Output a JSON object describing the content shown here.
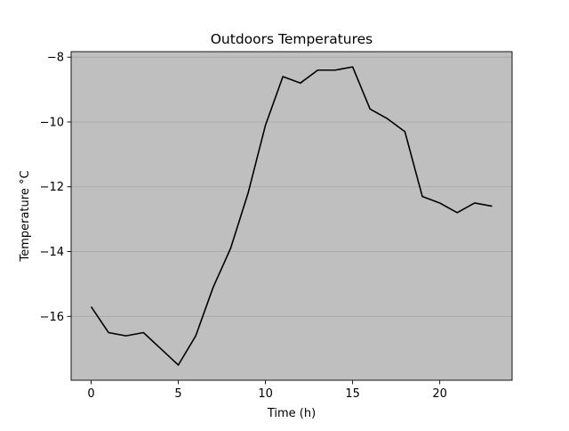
{
  "chart_data": {
    "type": "line",
    "title": "Outdoors Temperatures",
    "xlabel": "Time (h)",
    "ylabel": "Temperature °C",
    "xlim": [
      -1.15,
      24.15
    ],
    "ylim": [
      -17.97,
      -7.83
    ],
    "x_ticks": [
      0,
      5,
      10,
      15,
      20
    ],
    "x_tick_labels": [
      "0",
      "5",
      "10",
      "15",
      "20"
    ],
    "y_ticks": [
      -16,
      -14,
      -12,
      -10,
      -8
    ],
    "y_tick_labels": [
      "−16",
      "−14",
      "−12",
      "−10",
      "−8"
    ],
    "grid": "y-axis",
    "legend": "none",
    "series": [
      {
        "color": "#000000",
        "x": [
          0,
          1,
          2,
          3,
          4,
          5,
          6,
          7,
          8,
          9,
          10,
          11,
          12,
          13,
          14,
          15,
          16,
          17,
          18,
          19,
          20,
          21,
          22,
          23
        ],
        "values": [
          -15.7,
          -16.5,
          -16.6,
          -16.5,
          -17.0,
          -17.5,
          -16.6,
          -15.1,
          -13.9,
          -12.2,
          -10.1,
          -8.6,
          -8.8,
          -8.4,
          -8.4,
          -8.3,
          -9.6,
          -9.9,
          -10.3,
          -12.3,
          -12.5,
          -12.8,
          -12.5,
          -12.6
        ]
      }
    ],
    "colors": {
      "plot_background": "#bfbfbf",
      "grid": "#a6a6a6",
      "line": "#000000",
      "axes": "#000000"
    }
  }
}
